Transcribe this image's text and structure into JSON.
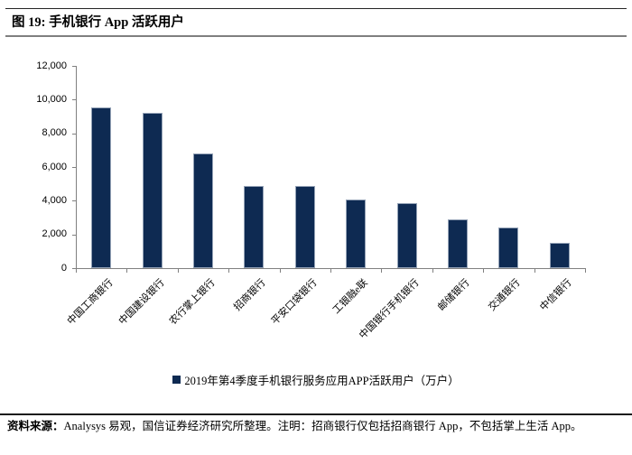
{
  "figure": {
    "title": "图 19: 手机银行 App 活跃用户"
  },
  "chart_data": {
    "type": "bar",
    "categories": [
      "中国工商银行",
      "中国建设银行",
      "农行掌上银行",
      "招商银行",
      "平安口袋银行",
      "工银融e联",
      "中国银行手机银行",
      "邮储银行",
      "交通银行",
      "中信银行"
    ],
    "values": [
      9550,
      9200,
      6800,
      4900,
      4880,
      4100,
      3880,
      2870,
      2420,
      1520
    ],
    "legend": "2019年第4季度手机银行服务应用APP活跃用户（万户）",
    "legend_position": "bottom",
    "unit": "万户",
    "ylim": [
      0,
      12000
    ],
    "yticks": [
      0,
      2000,
      4000,
      6000,
      8000,
      10000,
      12000
    ],
    "grid": false,
    "bar_color": "#0E2A52",
    "axis_color": "#808080"
  },
  "footer": {
    "source_label": "资料来源：",
    "source_text": "Analysys 易观，国信证券经济研究所整理。注明：招商银行仅包括招商银行 App，不包括掌上生活 App。"
  }
}
